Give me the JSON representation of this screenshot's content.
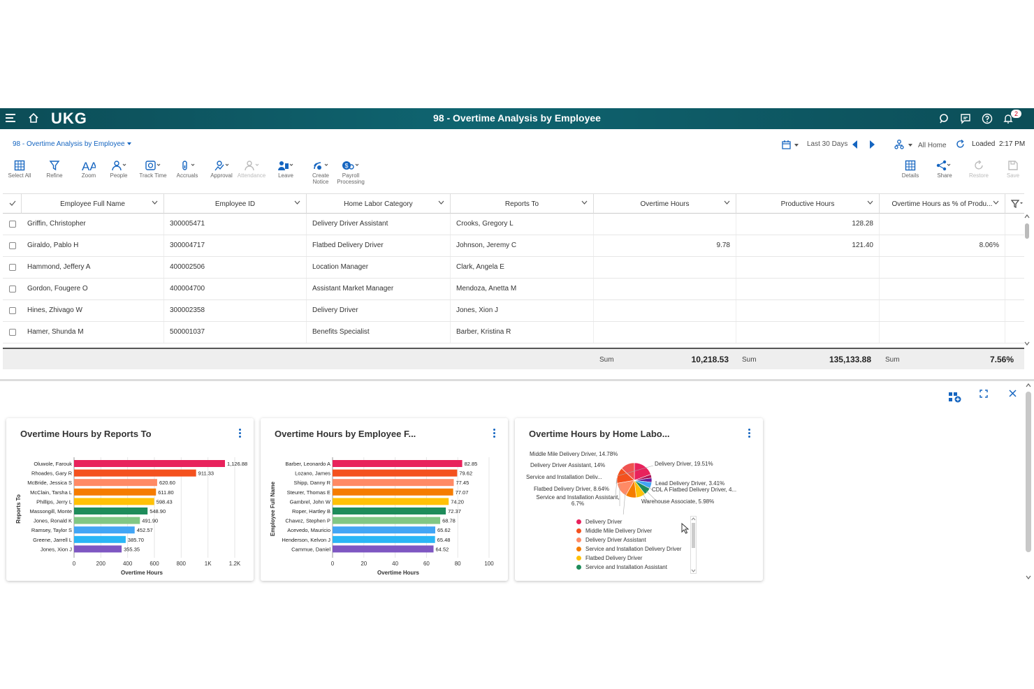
{
  "app": {
    "logo": "UKG",
    "title": "98 - Overtime Analysis by Employee",
    "notification_count": "2"
  },
  "breadcrumb": "98 - Overtime Analysis by Employee",
  "timeframe": {
    "label": "Last 30 Days"
  },
  "location": "All Home",
  "loaded": {
    "label": "Loaded",
    "time": "2:17 PM"
  },
  "toolbar": {
    "select_all": "Select All",
    "refine": "Refine",
    "zoom": "Zoom",
    "people": "People",
    "track_time": "Track Time",
    "accruals": "Accruals",
    "approval": "Approval",
    "attendance": "Attendance",
    "leave": "Leave",
    "create_notice_1": "Create",
    "create_notice_2": "Notice",
    "payroll_1": "Payroll",
    "payroll_2": "Processing",
    "details": "Details",
    "share": "Share",
    "restore": "Restore",
    "save": "Save"
  },
  "grid": {
    "columns": [
      "Employee Full Name",
      "Employee ID",
      "Home Labor Category",
      "Reports To",
      "Overtime Hours",
      "Productive Hours",
      "Overtime Hours as % of Produ..."
    ],
    "rows": [
      {
        "name": "Griffin, Christopher",
        "id": "300005471",
        "category": "Delivery Driver Assistant",
        "reports_to": "Crooks, Gregory L",
        "ot": "",
        "prod": "128.28",
        "pct": ""
      },
      {
        "name": "Giraldo, Pablo H",
        "id": "300004717",
        "category": "Flatbed Delivery Driver",
        "reports_to": "Johnson, Jeremy C",
        "ot": "9.78",
        "prod": "121.40",
        "pct": "8.06%"
      },
      {
        "name": "Hammond, Jeffery A",
        "id": "400002506",
        "category": "Location Manager",
        "reports_to": "Clark, Angela E",
        "ot": "",
        "prod": "",
        "pct": ""
      },
      {
        "name": "Gordon, Fougere O",
        "id": "400004700",
        "category": "Assistant Market Manager",
        "reports_to": "Mendoza, Anetta M",
        "ot": "",
        "prod": "",
        "pct": ""
      },
      {
        "name": "Hines, Zhivago W",
        "id": "300002358",
        "category": "Delivery Driver",
        "reports_to": "Jones, Xion J",
        "ot": "",
        "prod": "",
        "pct": ""
      },
      {
        "name": "Hamer, Shunda M",
        "id": "500001037",
        "category": "Benefits Specialist",
        "reports_to": "Barber, Kristina R",
        "ot": "",
        "prod": "",
        "pct": ""
      }
    ],
    "sum_label": "Sum",
    "sum_ot": "10,218.53",
    "sum_prod": "135,133.88",
    "sum_pct": "7.56%"
  },
  "cards": {
    "c1_title": "Overtime Hours by Reports To",
    "c2_title": "Overtime Hours by Employee F...",
    "c3_title": "Overtime Hours by Home Labo..."
  },
  "chart_data": [
    {
      "type": "bar",
      "orientation": "horizontal",
      "title": "Overtime Hours by Reports To",
      "xlabel": "Overtime Hours",
      "ylabel": "Reports To",
      "xlim": [
        0,
        1200
      ],
      "xticks": [
        "0",
        "200",
        "400",
        "600",
        "800",
        "1K",
        "1.2K"
      ],
      "categories": [
        "Oluwole, Farouk",
        "Rhoades, Gary R",
        "McBride, Jessica S",
        "McClain, Tarsha L",
        "Phillips, Jerry L",
        "Massongill, Monte",
        "Jones, Ronald K",
        "Ramsey, Taylor S",
        "Greene, Jarrell L",
        "Jones, Xion J"
      ],
      "values": [
        1126.88,
        911.33,
        620.6,
        611.8,
        598.43,
        548.9,
        491.9,
        452.57,
        385.7,
        355.35
      ],
      "labels": [
        "1,126.88",
        "911.33",
        "620.60",
        "611.80",
        "598.43",
        "548.90",
        "491.90",
        "452.57",
        "385.70",
        "355.35"
      ],
      "colors": [
        "#e8225c",
        "#f4511e",
        "#ff8a65",
        "#f57c00",
        "#ffc107",
        "#1e8c5a",
        "#81c784",
        "#42a5f5",
        "#29b6f6",
        "#7e57c2"
      ]
    },
    {
      "type": "bar",
      "orientation": "horizontal",
      "title": "Overtime Hours by Employee F...",
      "xlabel": "Overtime Hours",
      "ylabel": "Employee Full Name",
      "xlim": [
        0,
        100
      ],
      "xticks": [
        "0",
        "20",
        "40",
        "60",
        "80",
        "100"
      ],
      "categories": [
        "Barber, Leonardo A",
        "Lozano, James",
        "Shipp, Danny R",
        "Steurer, Thomas E",
        "Gambrel, John W",
        "Roper, Hartley B",
        "Chavez, Stephen P",
        "Acevedo, Mauricio",
        "Henderson, Kelvon J",
        "Cammue, Daniel"
      ],
      "values": [
        82.85,
        79.62,
        77.45,
        77.07,
        74.2,
        72.37,
        68.78,
        65.62,
        65.48,
        64.52
      ],
      "labels": [
        "82.85",
        "79.62",
        "77.45",
        "77.07",
        "74.20",
        "72.37",
        "68.78",
        "65.62",
        "65.48",
        "64.52"
      ],
      "colors": [
        "#e8225c",
        "#f4511e",
        "#ff8a65",
        "#f57c00",
        "#ffc107",
        "#1e8c5a",
        "#81c784",
        "#42a5f5",
        "#29b6f6",
        "#7e57c2"
      ]
    },
    {
      "type": "pie",
      "title": "Overtime Hours by Home Labo...",
      "slices": [
        {
          "label": "Delivery Driver, 19.51%",
          "value": 19.51,
          "color": "#e8225c"
        },
        {
          "label": "Lead Delivery Driver, 3.41%",
          "value": 3.41,
          "color": "#ad1457"
        },
        {
          "label": "CDL A Flatbed Delivery Driver, 4...",
          "value": 4.0,
          "color": "#6a1b9a"
        },
        {
          "label": "Warehouse Associate, 5.98%",
          "value": 5.98,
          "color": "#42a5f5"
        },
        {
          "label": "Service and Installation Assistant, 6.7%",
          "value": 6.7,
          "color": "#1e8c5a"
        },
        {
          "label": "Flatbed Delivery Driver, 8.64%",
          "value": 8.64,
          "color": "#ffc107"
        },
        {
          "label": "Service and Installation Deliv...",
          "value": 10.0,
          "color": "#f57c00"
        },
        {
          "label": "Delivery Driver Assistant, 14%",
          "value": 14.0,
          "color": "#ff8a65"
        },
        {
          "label": "Middle Mile Delivery Driver, 14.78%",
          "value": 14.78,
          "color": "#f4511e"
        },
        {
          "label": "",
          "value": 13.0,
          "color": "#ef5350"
        }
      ],
      "legend": [
        {
          "label": "Delivery Driver",
          "color": "#e8225c"
        },
        {
          "label": "Middle Mile Delivery Driver",
          "color": "#f4511e"
        },
        {
          "label": "Delivery Driver Assistant",
          "color": "#ff8a65"
        },
        {
          "label": "Service and Installation Delivery Driver",
          "color": "#f57c00"
        },
        {
          "label": "Flatbed Delivery Driver",
          "color": "#ffc107"
        },
        {
          "label": "Service and Installation Assistant",
          "color": "#1e8c5a"
        }
      ]
    }
  ]
}
